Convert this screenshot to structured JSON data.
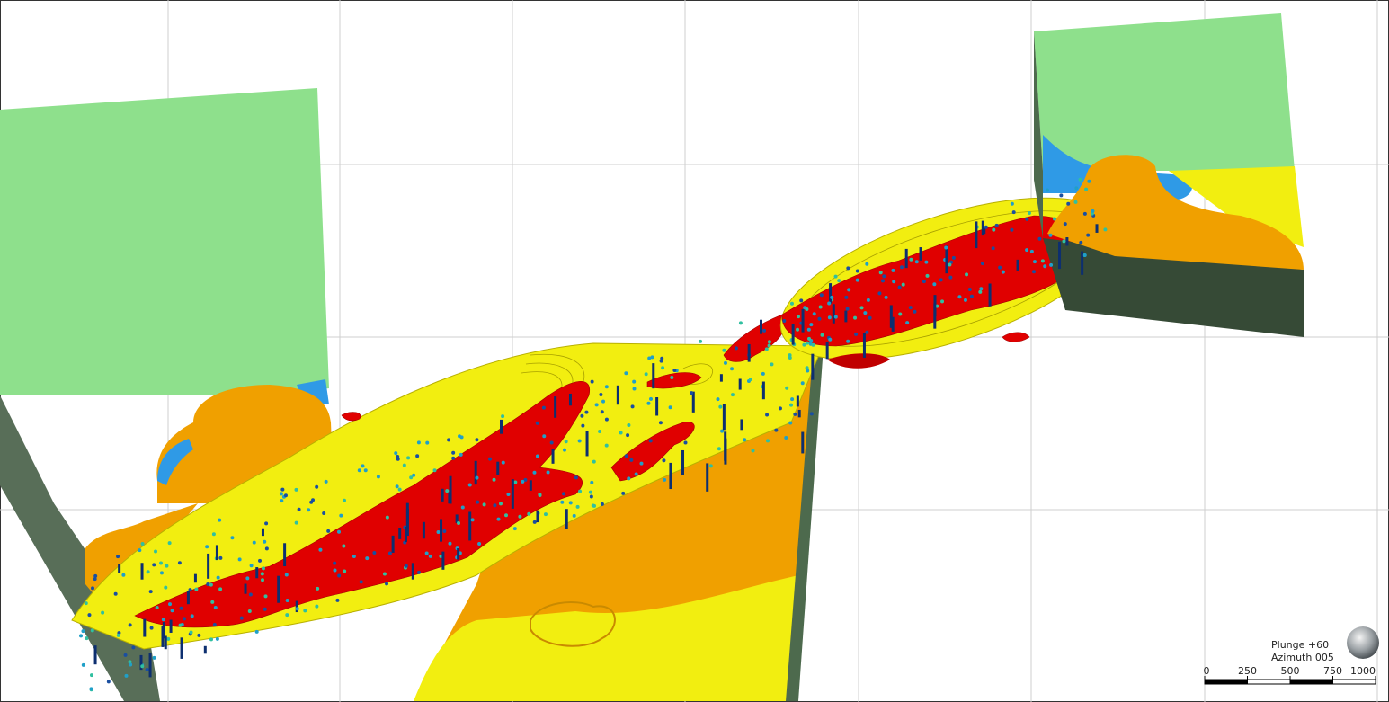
{
  "view": {
    "orientation": {
      "plunge": "Plunge +60",
      "azimuth": "Azimuth 005"
    },
    "scale_bar": {
      "labels": [
        0,
        250,
        500,
        750,
        1000
      ]
    }
  }
}
